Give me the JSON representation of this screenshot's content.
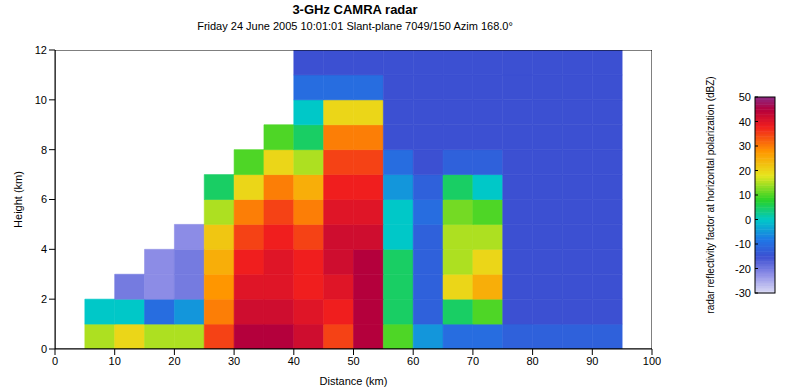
{
  "chart_data": {
    "type": "heatmap",
    "title": "3-GHz CAMRA radar",
    "subtitle": "Friday 24 June 2005 10:01:01 Slant-plane 7049/150 Azim 168.0°",
    "xlabel": "Distance (km)",
    "ylabel": "Height (km)",
    "xlim": [
      0,
      100
    ],
    "ylim": [
      0,
      12
    ],
    "xticks": [
      0,
      10,
      20,
      30,
      40,
      50,
      60,
      70,
      80,
      90,
      100
    ],
    "yticks": [
      0,
      2,
      4,
      6,
      8,
      10,
      12
    ],
    "grid": false,
    "x_edges": [
      0,
      5,
      10,
      15,
      20,
      25,
      30,
      35,
      40,
      45,
      50,
      55,
      60,
      65,
      70,
      75,
      80,
      85,
      90,
      95,
      100
    ],
    "y_edges": [
      0,
      1,
      2,
      3,
      4,
      5,
      6,
      7,
      8,
      9,
      10,
      11,
      12
    ],
    "cells": [
      [
        null,
        15,
        20,
        15,
        15,
        35,
        45,
        45,
        42,
        35,
        45,
        10,
        -5,
        -10,
        -10,
        -12,
        -12,
        -12,
        -12,
        null
      ],
      [
        null,
        0,
        0,
        -10,
        -5,
        30,
        42,
        42,
        40,
        38,
        45,
        5,
        -12,
        5,
        10,
        -15,
        -15,
        -15,
        -15,
        null
      ],
      [
        null,
        null,
        -20,
        -22,
        -20,
        28,
        40,
        40,
        38,
        40,
        45,
        5,
        -12,
        20,
        25,
        -15,
        -15,
        -15,
        -15,
        null
      ],
      [
        null,
        null,
        null,
        -22,
        -20,
        25,
        38,
        40,
        38,
        42,
        45,
        5,
        -12,
        15,
        20,
        -15,
        -15,
        -15,
        -15,
        null
      ],
      [
        null,
        null,
        null,
        null,
        -22,
        22,
        35,
        38,
        35,
        42,
        42,
        0,
        -12,
        15,
        15,
        -15,
        -15,
        -15,
        -15,
        null
      ],
      [
        null,
        null,
        null,
        null,
        null,
        15,
        30,
        35,
        30,
        40,
        40,
        0,
        -10,
        12,
        10,
        -15,
        -15,
        -15,
        -15,
        null
      ],
      [
        null,
        null,
        null,
        null,
        null,
        5,
        20,
        30,
        25,
        38,
        38,
        -5,
        -12,
        5,
        0,
        -15,
        -15,
        -15,
        -15,
        null
      ],
      [
        null,
        null,
        null,
        null,
        null,
        null,
        10,
        20,
        15,
        35,
        35,
        -10,
        -15,
        -12,
        -12,
        -15,
        -15,
        -15,
        -15,
        null
      ],
      [
        null,
        null,
        null,
        null,
        null,
        null,
        null,
        10,
        5,
        30,
        30,
        -15,
        -15,
        -15,
        -15,
        -15,
        -15,
        -15,
        -15,
        null
      ],
      [
        null,
        null,
        null,
        null,
        null,
        null,
        null,
        null,
        0,
        20,
        20,
        -15,
        -15,
        -15,
        -15,
        -15,
        -15,
        -15,
        -15,
        null
      ],
      [
        null,
        null,
        null,
        null,
        null,
        null,
        null,
        null,
        -10,
        -10,
        -10,
        -15,
        -15,
        -15,
        -15,
        -15,
        -15,
        -15,
        -15,
        null
      ],
      [
        null,
        null,
        null,
        null,
        null,
        null,
        null,
        null,
        -15,
        -15,
        -15,
        -15,
        -15,
        -15,
        -15,
        -15,
        -15,
        -15,
        -15,
        null
      ]
    ],
    "color_range": [
      -30,
      50
    ],
    "color_ticks": [
      -30,
      -20,
      -10,
      0,
      10,
      20,
      30,
      40,
      50
    ],
    "color_label": "radar reflectivity factor at horizontal polarization (dBZ)"
  }
}
